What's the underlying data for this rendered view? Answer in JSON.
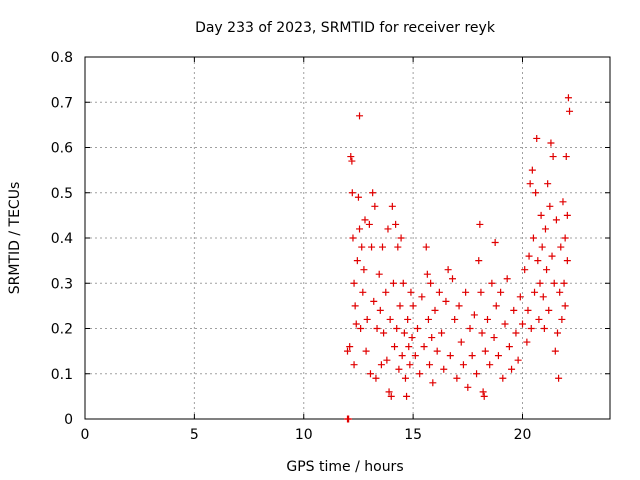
{
  "chart_data": {
    "type": "scatter",
    "title": "Day 233 of 2023, SRMTID for receiver reyk",
    "xlabel": "GPS time / hours",
    "ylabel": "SRMTID / TECUs",
    "xlim": [
      0,
      24
    ],
    "ylim": [
      0,
      0.8
    ],
    "xticks": [
      0,
      5,
      10,
      15,
      20
    ],
    "yticks": [
      0,
      0.1,
      0.2,
      0.3,
      0.4,
      0.5,
      0.6,
      0.7,
      0.8
    ],
    "grid": true,
    "series": [
      {
        "name": "SRMTID",
        "marker": "+",
        "color": "#e00000",
        "points": [
          [
            12.0,
            0.0
          ],
          [
            12.05,
            0.0
          ],
          [
            12.0,
            0.15
          ],
          [
            12.1,
            0.16
          ],
          [
            12.15,
            0.58
          ],
          [
            12.2,
            0.57
          ],
          [
            12.22,
            0.5
          ],
          [
            12.25,
            0.4
          ],
          [
            12.3,
            0.3
          ],
          [
            12.3,
            0.12
          ],
          [
            12.35,
            0.25
          ],
          [
            12.4,
            0.21
          ],
          [
            12.45,
            0.35
          ],
          [
            12.5,
            0.49
          ],
          [
            12.55,
            0.42
          ],
          [
            12.55,
            0.67
          ],
          [
            12.6,
            0.2
          ],
          [
            12.65,
            0.38
          ],
          [
            12.7,
            0.28
          ],
          [
            12.75,
            0.33
          ],
          [
            12.8,
            0.44
          ],
          [
            12.85,
            0.15
          ],
          [
            12.9,
            0.22
          ],
          [
            13.0,
            0.43
          ],
          [
            13.05,
            0.1
          ],
          [
            13.1,
            0.38
          ],
          [
            13.15,
            0.5
          ],
          [
            13.2,
            0.26
          ],
          [
            13.25,
            0.47
          ],
          [
            13.3,
            0.09
          ],
          [
            13.35,
            0.2
          ],
          [
            13.45,
            0.32
          ],
          [
            13.5,
            0.24
          ],
          [
            13.55,
            0.12
          ],
          [
            13.6,
            0.38
          ],
          [
            13.65,
            0.19
          ],
          [
            13.75,
            0.28
          ],
          [
            13.8,
            0.13
          ],
          [
            13.85,
            0.42
          ],
          [
            13.9,
            0.06
          ],
          [
            13.95,
            0.22
          ],
          [
            14.0,
            0.05
          ],
          [
            14.05,
            0.47
          ],
          [
            14.1,
            0.3
          ],
          [
            14.15,
            0.16
          ],
          [
            14.2,
            0.43
          ],
          [
            14.25,
            0.2
          ],
          [
            14.3,
            0.38
          ],
          [
            14.35,
            0.11
          ],
          [
            14.4,
            0.25
          ],
          [
            14.45,
            0.4
          ],
          [
            14.5,
            0.14
          ],
          [
            14.55,
            0.3
          ],
          [
            14.6,
            0.19
          ],
          [
            14.65,
            0.09
          ],
          [
            14.7,
            0.05
          ],
          [
            14.75,
            0.22
          ],
          [
            14.8,
            0.16
          ],
          [
            14.85,
            0.12
          ],
          [
            14.9,
            0.28
          ],
          [
            14.95,
            0.18
          ],
          [
            15.0,
            0.25
          ],
          [
            15.1,
            0.14
          ],
          [
            15.2,
            0.2
          ],
          [
            15.3,
            0.1
          ],
          [
            15.4,
            0.27
          ],
          [
            15.5,
            0.16
          ],
          [
            15.6,
            0.38
          ],
          [
            15.65,
            0.32
          ],
          [
            15.7,
            0.22
          ],
          [
            15.75,
            0.12
          ],
          [
            15.8,
            0.3
          ],
          [
            15.85,
            0.18
          ],
          [
            15.9,
            0.08
          ],
          [
            16.0,
            0.24
          ],
          [
            16.1,
            0.15
          ],
          [
            16.2,
            0.28
          ],
          [
            16.3,
            0.19
          ],
          [
            16.4,
            0.11
          ],
          [
            16.5,
            0.26
          ],
          [
            16.6,
            0.33
          ],
          [
            16.7,
            0.14
          ],
          [
            16.8,
            0.31
          ],
          [
            16.9,
            0.22
          ],
          [
            17.0,
            0.09
          ],
          [
            17.1,
            0.25
          ],
          [
            17.2,
            0.17
          ],
          [
            17.3,
            0.12
          ],
          [
            17.4,
            0.28
          ],
          [
            17.5,
            0.07
          ],
          [
            17.6,
            0.2
          ],
          [
            17.7,
            0.14
          ],
          [
            17.8,
            0.23
          ],
          [
            17.9,
            0.1
          ],
          [
            18.0,
            0.35
          ],
          [
            18.05,
            0.43
          ],
          [
            18.1,
            0.28
          ],
          [
            18.15,
            0.19
          ],
          [
            18.2,
            0.06
          ],
          [
            18.25,
            0.05
          ],
          [
            18.3,
            0.15
          ],
          [
            18.4,
            0.22
          ],
          [
            18.5,
            0.12
          ],
          [
            18.6,
            0.3
          ],
          [
            18.7,
            0.18
          ],
          [
            18.75,
            0.39
          ],
          [
            18.8,
            0.25
          ],
          [
            18.9,
            0.14
          ],
          [
            19.0,
            0.28
          ],
          [
            19.1,
            0.09
          ],
          [
            19.2,
            0.21
          ],
          [
            19.3,
            0.31
          ],
          [
            19.4,
            0.16
          ],
          [
            19.5,
            0.11
          ],
          [
            19.6,
            0.24
          ],
          [
            19.7,
            0.19
          ],
          [
            19.8,
            0.13
          ],
          [
            19.9,
            0.27
          ],
          [
            20.0,
            0.21
          ],
          [
            20.1,
            0.33
          ],
          [
            20.2,
            0.17
          ],
          [
            20.25,
            0.24
          ],
          [
            20.3,
            0.36
          ],
          [
            20.35,
            0.52
          ],
          [
            20.4,
            0.2
          ],
          [
            20.45,
            0.55
          ],
          [
            20.5,
            0.4
          ],
          [
            20.55,
            0.28
          ],
          [
            20.6,
            0.5
          ],
          [
            20.65,
            0.62
          ],
          [
            20.7,
            0.35
          ],
          [
            20.75,
            0.22
          ],
          [
            20.8,
            0.3
          ],
          [
            20.85,
            0.45
          ],
          [
            20.9,
            0.38
          ],
          [
            20.95,
            0.27
          ],
          [
            21.0,
            0.2
          ],
          [
            21.05,
            0.42
          ],
          [
            21.1,
            0.33
          ],
          [
            21.15,
            0.52
          ],
          [
            21.2,
            0.24
          ],
          [
            21.25,
            0.47
          ],
          [
            21.3,
            0.61
          ],
          [
            21.35,
            0.36
          ],
          [
            21.4,
            0.58
          ],
          [
            21.45,
            0.3
          ],
          [
            21.5,
            0.15
          ],
          [
            21.55,
            0.44
          ],
          [
            21.6,
            0.19
          ],
          [
            21.65,
            0.09
          ],
          [
            21.7,
            0.28
          ],
          [
            21.75,
            0.38
          ],
          [
            21.8,
            0.22
          ],
          [
            21.85,
            0.48
          ],
          [
            21.9,
            0.3
          ],
          [
            21.95,
            0.25
          ],
          [
            22.0,
            0.58
          ],
          [
            22.05,
            0.45
          ],
          [
            22.1,
            0.71
          ],
          [
            22.15,
            0.68
          ],
          [
            22.05,
            0.35
          ],
          [
            21.95,
            0.4
          ]
        ]
      }
    ]
  }
}
